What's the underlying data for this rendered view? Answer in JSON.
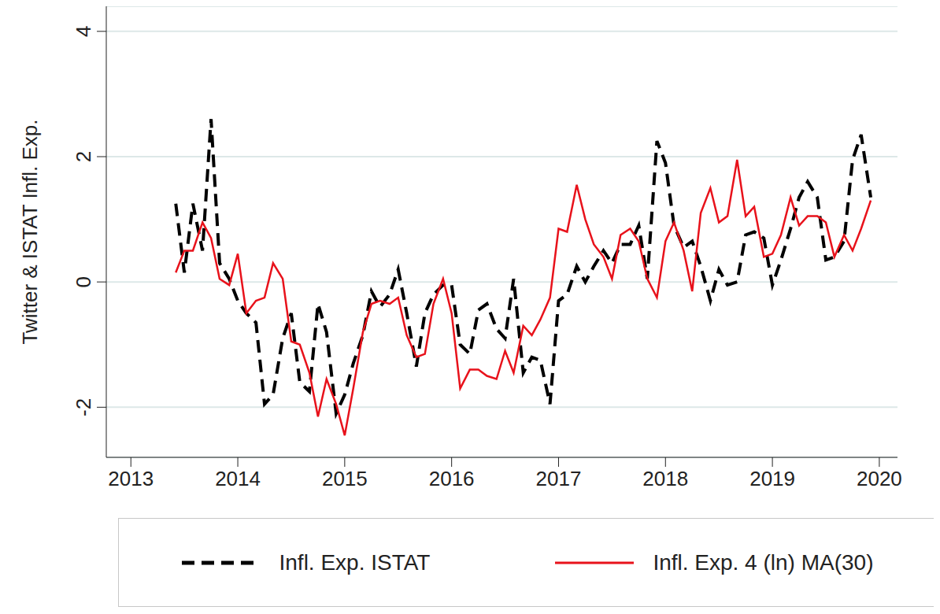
{
  "chart_data": {
    "type": "line",
    "y_label": "Twitter & ISTAT Infl. Exp.",
    "x": [
      2013.42,
      2013.5,
      2013.58,
      2013.67,
      2013.75,
      2013.83,
      2013.92,
      2014.0,
      2014.08,
      2014.17,
      2014.25,
      2014.33,
      2014.42,
      2014.5,
      2014.58,
      2014.67,
      2014.75,
      2014.83,
      2014.92,
      2015.0,
      2015.08,
      2015.17,
      2015.25,
      2015.33,
      2015.42,
      2015.5,
      2015.58,
      2015.67,
      2015.75,
      2015.83,
      2015.92,
      2016.0,
      2016.08,
      2016.17,
      2016.25,
      2016.33,
      2016.42,
      2016.5,
      2016.58,
      2016.67,
      2016.75,
      2016.83,
      2016.92,
      2017.0,
      2017.08,
      2017.17,
      2017.25,
      2017.33,
      2017.42,
      2017.5,
      2017.58,
      2017.67,
      2017.75,
      2017.83,
      2017.92,
      2018.0,
      2018.08,
      2018.17,
      2018.25,
      2018.33,
      2018.42,
      2018.5,
      2018.58,
      2018.67,
      2018.75,
      2018.83,
      2018.92,
      2019.0,
      2019.08,
      2019.17,
      2019.25,
      2019.33,
      2019.42,
      2019.5,
      2019.58,
      2019.67,
      2019.75,
      2019.83,
      2019.92
    ],
    "series": [
      {
        "name": "Infl. Exp. ISTAT",
        "color": "#000000",
        "line_style": "dashed",
        "values": [
          1.25,
          0.15,
          1.25,
          0.5,
          2.6,
          0.3,
          0.05,
          -0.3,
          -0.5,
          -0.65,
          -1.95,
          -1.8,
          -0.9,
          -0.5,
          -1.6,
          -1.75,
          -0.35,
          -0.8,
          -2.1,
          -1.8,
          -1.3,
          -0.85,
          -0.15,
          -0.4,
          -0.2,
          0.2,
          -0.5,
          -1.35,
          -0.5,
          -0.2,
          -0.05,
          -0.05,
          -1.0,
          -1.15,
          -0.45,
          -0.35,
          -0.75,
          -0.9,
          0.05,
          -1.45,
          -1.2,
          -1.25,
          -1.95,
          -0.3,
          -0.2,
          0.25,
          0.0,
          0.25,
          0.5,
          0.3,
          0.6,
          0.6,
          0.9,
          0.05,
          2.25,
          1.9,
          0.9,
          0.55,
          0.65,
          0.25,
          -0.3,
          0.2,
          -0.05,
          0.0,
          0.75,
          0.8,
          0.7,
          -0.05,
          0.35,
          0.85,
          1.35,
          1.6,
          1.35,
          0.35,
          0.4,
          0.65,
          1.95,
          2.35,
          1.35
        ]
      },
      {
        "name": "Infl. Exp. 4 (ln) MA(30)",
        "color": "#e8121b",
        "line_style": "solid",
        "values": [
          0.15,
          0.5,
          0.5,
          0.95,
          0.7,
          0.05,
          -0.05,
          0.45,
          -0.5,
          -0.3,
          -0.25,
          0.3,
          0.05,
          -0.95,
          -1.0,
          -1.45,
          -2.15,
          -1.55,
          -1.95,
          -2.45,
          -1.7,
          -0.8,
          -0.35,
          -0.3,
          -0.35,
          -0.25,
          -0.85,
          -1.2,
          -1.15,
          -0.35,
          0.05,
          -0.5,
          -1.7,
          -1.4,
          -1.4,
          -1.5,
          -1.55,
          -1.1,
          -1.45,
          -0.7,
          -0.85,
          -0.6,
          -0.25,
          0.85,
          0.8,
          1.55,
          1.0,
          0.6,
          0.4,
          0.05,
          0.75,
          0.85,
          0.65,
          0.05,
          -0.25,
          0.65,
          0.95,
          0.5,
          -0.15,
          1.1,
          1.5,
          0.95,
          1.05,
          1.95,
          1.05,
          1.2,
          0.4,
          0.45,
          0.75,
          1.35,
          0.9,
          1.05,
          1.05,
          0.95,
          0.4,
          0.75,
          0.5,
          0.85,
          1.3
        ]
      }
    ],
    "xlim": [
      2012.77,
      2020.17
    ],
    "xticks": [
      2013,
      2014,
      2015,
      2016,
      2017,
      2018,
      2019,
      2020
    ],
    "ylim": [
      -2.8,
      4.4
    ],
    "yticks": [
      -2,
      0,
      2,
      4
    ],
    "grid": true,
    "legend": "bottom"
  }
}
